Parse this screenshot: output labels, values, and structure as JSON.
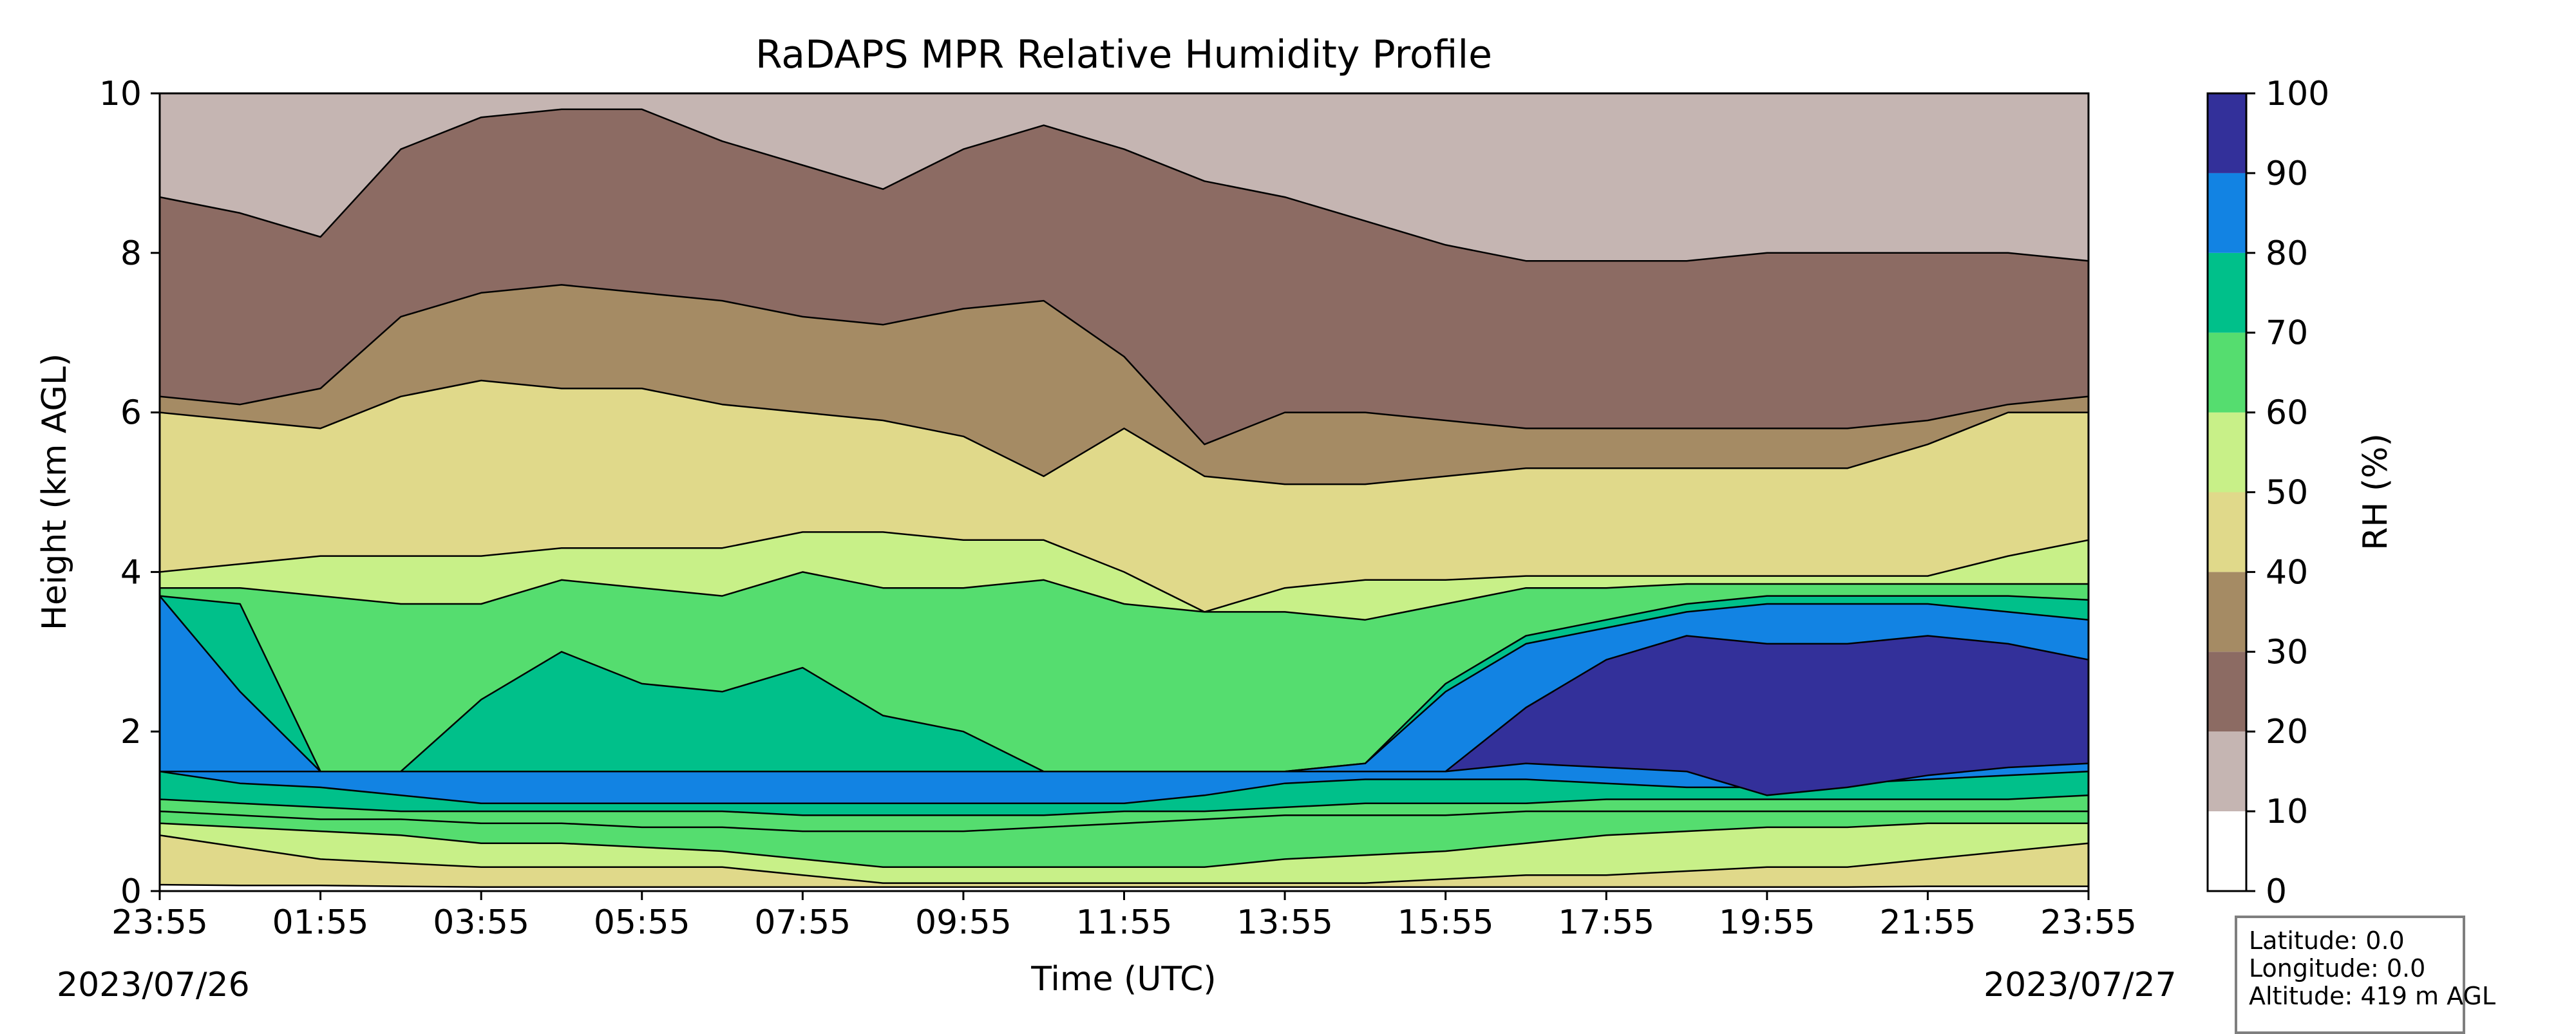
{
  "chart_data": {
    "type": "heatmap",
    "subtype": "filled-contour",
    "title": "RaDAPS MPR Relative Humidity Profile",
    "xlabel": "Time (UTC)",
    "ylabel": "Height (km AGL)",
    "x_ticks": [
      "23:55",
      "01:55",
      "03:55",
      "05:55",
      "07:55",
      "09:55",
      "11:55",
      "13:55",
      "15:55",
      "17:55",
      "19:55",
      "21:55",
      "23:55"
    ],
    "x_range_hours": [
      0,
      24
    ],
    "start_date": "2023/07/26",
    "end_date": "2023/07/27",
    "ylim": [
      0,
      10
    ],
    "y_ticks": [
      0,
      2,
      4,
      6,
      8,
      10
    ],
    "contour_lines": true,
    "colorbar": {
      "label": "RH (%)",
      "levels": [
        0,
        10,
        20,
        30,
        40,
        50,
        60,
        70,
        80,
        90,
        100
      ],
      "colors": [
        "#ffffff",
        "#c5b5b2",
        "#8c6b63",
        "#a58b64",
        "#e0d98a",
        "#c8f088",
        "#55dd6f",
        "#00c08a",
        "#1283e3",
        "#33309a"
      ]
    },
    "profiles": {
      "x": [
        0,
        1,
        2,
        3,
        4,
        5,
        6,
        7,
        8,
        9,
        10,
        11,
        12,
        13,
        14,
        15,
        16,
        17,
        18,
        19,
        20,
        21,
        22,
        23,
        24
      ],
      "boundaries_km": {
        "rh10_surface": [
          0.08,
          0.07,
          0.07,
          0.06,
          0.05,
          0.05,
          0.05,
          0.05,
          0.05,
          0.05,
          0.05,
          0.05,
          0.05,
          0.05,
          0.05,
          0.05,
          0.05,
          0.05,
          0.05,
          0.05,
          0.05,
          0.05,
          0.06,
          0.06,
          0.06
        ],
        "rh40_low": [
          0.7,
          0.55,
          0.4,
          0.35,
          0.3,
          0.3,
          0.3,
          0.3,
          0.2,
          0.1,
          0.1,
          0.1,
          0.1,
          0.1,
          0.1,
          0.1,
          0.15,
          0.2,
          0.2,
          0.25,
          0.3,
          0.3,
          0.4,
          0.5,
          0.6
        ],
        "rh50_low": [
          0.85,
          0.8,
          0.75,
          0.7,
          0.6,
          0.6,
          0.55,
          0.5,
          0.4,
          0.3,
          0.3,
          0.3,
          0.3,
          0.3,
          0.4,
          0.45,
          0.5,
          0.6,
          0.7,
          0.75,
          0.8,
          0.8,
          0.85,
          0.85,
          0.85
        ],
        "rh60_low": [
          1.0,
          0.95,
          0.9,
          0.9,
          0.85,
          0.85,
          0.8,
          0.8,
          0.75,
          0.75,
          0.75,
          0.8,
          0.85,
          0.9,
          0.95,
          0.95,
          0.95,
          1.0,
          1.0,
          1.0,
          1.0,
          1.0,
          1.0,
          1.0,
          1.0
        ],
        "rh70_low": [
          1.15,
          1.1,
          1.05,
          1.0,
          1.0,
          1.0,
          1.0,
          1.0,
          0.95,
          0.95,
          0.95,
          0.95,
          1.0,
          1.0,
          1.05,
          1.1,
          1.1,
          1.1,
          1.15,
          1.15,
          1.15,
          1.15,
          1.15,
          1.15,
          1.2
        ],
        "rh80_low": [
          1.5,
          1.35,
          1.3,
          1.2,
          1.1,
          1.1,
          1.1,
          1.1,
          1.1,
          1.1,
          1.1,
          1.1,
          1.1,
          1.2,
          1.35,
          1.4,
          1.4,
          1.4,
          1.35,
          1.3,
          1.3,
          1.35,
          1.4,
          1.45,
          1.5
        ],
        "rh90_low": [
          1.5,
          1.5,
          1.5,
          1.5,
          1.5,
          1.5,
          1.5,
          1.5,
          1.5,
          1.5,
          1.5,
          1.5,
          1.5,
          1.5,
          1.5,
          1.5,
          1.5,
          1.6,
          1.55,
          1.5,
          1.2,
          1.3,
          1.45,
          1.55,
          1.6
        ],
        "rh90_top": [
          1.5,
          1.5,
          1.5,
          1.5,
          1.5,
          1.5,
          1.5,
          1.5,
          1.5,
          1.5,
          1.5,
          1.5,
          1.5,
          1.5,
          1.5,
          1.5,
          1.5,
          2.3,
          2.9,
          3.2,
          3.1,
          3.1,
          3.2,
          3.1,
          2.9
        ],
        "rh80_top": [
          3.7,
          2.5,
          1.5,
          1.5,
          1.5,
          1.5,
          1.5,
          1.5,
          1.5,
          1.5,
          1.5,
          1.5,
          1.5,
          1.5,
          1.5,
          1.6,
          2.5,
          3.1,
          3.3,
          3.5,
          3.6,
          3.6,
          3.6,
          3.5,
          3.4
        ],
        "rh70_top": [
          3.7,
          3.6,
          1.5,
          1.5,
          2.4,
          3.0,
          2.6,
          2.5,
          2.8,
          2.2,
          2.0,
          1.5,
          1.5,
          1.5,
          1.5,
          1.6,
          2.6,
          3.2,
          3.4,
          3.6,
          3.7,
          3.7,
          3.7,
          3.7,
          3.65
        ],
        "rh60_top": [
          3.8,
          3.8,
          3.7,
          3.6,
          3.6,
          3.9,
          3.8,
          3.7,
          4.0,
          3.8,
          3.8,
          3.9,
          3.6,
          3.5,
          3.5,
          3.4,
          3.6,
          3.8,
          3.8,
          3.85,
          3.85,
          3.85,
          3.85,
          3.85,
          3.85
        ],
        "rh50_top": [
          4.0,
          4.1,
          4.2,
          4.2,
          4.2,
          4.3,
          4.3,
          4.3,
          4.5,
          4.5,
          4.4,
          4.4,
          4.0,
          3.5,
          3.8,
          3.9,
          3.9,
          3.95,
          3.95,
          3.95,
          3.95,
          3.95,
          3.95,
          4.2,
          4.4
        ],
        "rh40_top": [
          6.0,
          5.9,
          5.8,
          6.2,
          6.4,
          6.3,
          6.3,
          6.1,
          6.0,
          5.9,
          5.7,
          5.2,
          5.8,
          5.2,
          5.1,
          5.1,
          5.2,
          5.3,
          5.3,
          5.3,
          5.3,
          5.3,
          5.6,
          6.0,
          6.0
        ],
        "rh30_top": [
          6.2,
          6.1,
          6.3,
          7.2,
          7.5,
          7.6,
          7.5,
          7.4,
          7.2,
          7.1,
          7.3,
          7.4,
          6.7,
          5.6,
          6.0,
          6.0,
          5.9,
          5.8,
          5.8,
          5.8,
          5.8,
          5.8,
          5.9,
          6.1,
          6.2
        ],
        "rh20_top": [
          8.7,
          8.5,
          8.2,
          9.3,
          9.7,
          9.8,
          9.8,
          9.4,
          9.1,
          8.8,
          9.3,
          9.6,
          9.3,
          8.9,
          8.7,
          8.4,
          8.1,
          7.9,
          7.9,
          7.9,
          8.0,
          8.0,
          8.0,
          8.0,
          7.9
        ]
      }
    }
  },
  "info_box": {
    "latitude": "Latitude: 0.0",
    "longitude": "Longitude: 0.0",
    "altitude": "Altitude: 419 m AGL"
  }
}
